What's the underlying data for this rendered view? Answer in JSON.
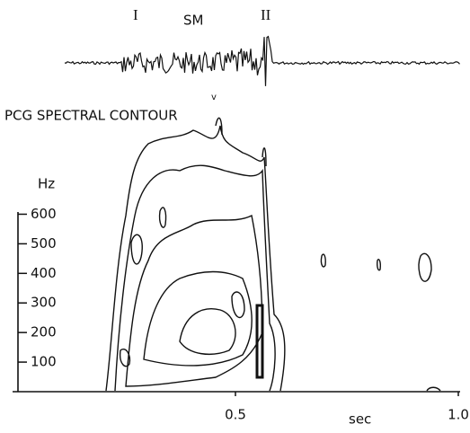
{
  "chart_data": {
    "type": "contour",
    "title": "PCG SPECTRAL CONTOUR",
    "annotations": [
      "I",
      "SM",
      "II",
      "v"
    ],
    "ylabel": "Hz",
    "xlabel": "sec",
    "xlim": [
      0,
      1
    ],
    "xticks": [
      0.5,
      {
        "value": 1,
        "label": "1.0"
      }
    ],
    "ylim": [
      0,
      650
    ],
    "yticks": [
      100,
      200,
      300,
      400,
      500,
      600
    ]
  }
}
